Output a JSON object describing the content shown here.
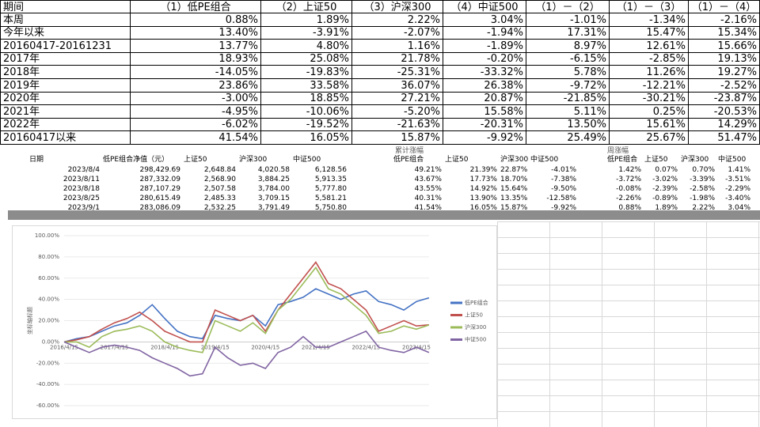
{
  "table1": {
    "header": [
      "期间",
      "（1）低PE组合",
      "（2）上证50",
      "（3）沪深300",
      "（4）中证500",
      "（1）－（2）",
      "（1）－（3）",
      "（1）－（4）"
    ],
    "rows": [
      [
        "本周",
        "0.88%",
        "1.89%",
        "2.22%",
        "3.04%",
        "-1.01%",
        "-1.34%",
        "-2.16%"
      ],
      [
        "今年以来",
        "13.40%",
        "-3.91%",
        "-2.07%",
        "-1.94%",
        "17.31%",
        "15.47%",
        "15.34%"
      ],
      [
        "20160417-20161231",
        "13.77%",
        "4.80%",
        "1.16%",
        "-1.89%",
        "8.97%",
        "12.61%",
        "15.66%"
      ],
      [
        "2017年",
        "18.93%",
        "25.08%",
        "21.78%",
        "-0.20%",
        "-6.15%",
        "-2.85%",
        "19.13%"
      ],
      [
        "2018年",
        "-14.05%",
        "-19.83%",
        "-25.31%",
        "-33.32%",
        "5.78%",
        "11.26%",
        "19.27%"
      ],
      [
        "2019年",
        "23.86%",
        "33.58%",
        "36.07%",
        "26.38%",
        "-9.72%",
        "-12.21%",
        "-2.52%"
      ],
      [
        "2020年",
        "-3.00%",
        "18.85%",
        "27.21%",
        "20.87%",
        "-21.85%",
        "-30.21%",
        "-23.87%"
      ],
      [
        "2021年",
        "-4.95%",
        "-10.06%",
        "-5.20%",
        "15.58%",
        "5.11%",
        "0.25%",
        "-20.53%"
      ],
      [
        "2022年",
        "-6.02%",
        "-19.52%",
        "-21.63%",
        "-20.31%",
        "13.50%",
        "15.61%",
        "14.29%"
      ],
      [
        "20160417以来",
        "41.54%",
        "16.05%",
        "15.87%",
        "-9.92%",
        "25.49%",
        "25.67%",
        "51.47%"
      ]
    ]
  },
  "table2": {
    "groups": [
      "累计涨幅",
      "周涨幅"
    ],
    "header": [
      "日期",
      "低PE组合净值（元）",
      "上证50",
      "沪深300",
      "中证500",
      "低PE组合",
      "上证50",
      "沪深300",
      "中证500",
      "低PE组合",
      "上证50",
      "沪深300",
      "中证500"
    ],
    "rows": [
      [
        "2023/8/4",
        "298,429.69",
        "2,648.84",
        "4,020.58",
        "6,128.56",
        "49.21%",
        "21.39%",
        "22.87%",
        "-4.01%",
        "1.42%",
        "0.07%",
        "0.70%",
        "1.41%"
      ],
      [
        "2023/8/11",
        "287,332.09",
        "2,568.90",
        "3,884.25",
        "5,913.35",
        "43.67%",
        "17.73%",
        "18.70%",
        "-7.38%",
        "-3.72%",
        "-3.02%",
        "-3.39%",
        "-3.51%"
      ],
      [
        "2023/8/18",
        "287,107.29",
        "2,507.58",
        "3,784.00",
        "5,777.80",
        "43.55%",
        "14.92%",
        "15.64%",
        "-9.50%",
        "-0.08%",
        "-2.39%",
        "-2.58%",
        "-2.29%"
      ],
      [
        "2023/8/25",
        "280,615.49",
        "2,485.33",
        "3,709.15",
        "5,581.21",
        "40.31%",
        "13.90%",
        "13.35%",
        "-12.58%",
        "-2.26%",
        "-0.89%",
        "-1.98%",
        "-3.40%"
      ],
      [
        "2023/9/1",
        "283,086.09",
        "2,532.25",
        "3,791.49",
        "5,750.80",
        "41.54%",
        "16.05%",
        "15.87%",
        "-9.92%",
        "0.88%",
        "1.89%",
        "2.22%",
        "3.04%"
      ]
    ]
  },
  "chart_data": {
    "type": "line",
    "y_label": "坐标轴标题",
    "categories": [
      "2016/4/15",
      null,
      null,
      null,
      "2017/4/15",
      null,
      null,
      null,
      "2018/4/15",
      null,
      null,
      null,
      "2019/4/15",
      null,
      null,
      null,
      "2020/4/15",
      null,
      null,
      null,
      "2021/4/15",
      null,
      null,
      null,
      "2022/4/15",
      null,
      null,
      null,
      "2023/4/15",
      null
    ],
    "series": [
      {
        "name": "低PE组合",
        "color": "#4472c4",
        "values": [
          0,
          3,
          5,
          10,
          15,
          18,
          25,
          35,
          22,
          10,
          5,
          3,
          25,
          22,
          20,
          25,
          15,
          35,
          38,
          42,
          50,
          45,
          40,
          45,
          48,
          38,
          35,
          30,
          38,
          41.54
        ]
      },
      {
        "name": "上证50",
        "color": "#c0504d",
        "values": [
          0,
          2,
          5,
          12,
          18,
          22,
          28,
          20,
          10,
          5,
          0,
          0,
          30,
          25,
          20,
          25,
          10,
          30,
          45,
          60,
          75,
          55,
          50,
          40,
          30,
          10,
          15,
          20,
          15,
          16.05
        ]
      },
      {
        "name": "沪深300",
        "color": "#9bbb59",
        "values": [
          0,
          0,
          -5,
          5,
          10,
          12,
          15,
          10,
          0,
          -5,
          -8,
          -10,
          20,
          15,
          10,
          18,
          8,
          30,
          40,
          55,
          70,
          50,
          45,
          35,
          25,
          8,
          10,
          15,
          12,
          15.87
        ]
      },
      {
        "name": "中证500",
        "color": "#8064a2",
        "values": [
          0,
          -5,
          -10,
          -5,
          -3,
          -5,
          -8,
          -15,
          -20,
          -25,
          -32,
          -30,
          -5,
          -15,
          -22,
          -20,
          -25,
          -10,
          -5,
          5,
          -5,
          -5,
          0,
          5,
          10,
          -5,
          -8,
          -10,
          -5,
          -9.92
        ]
      }
    ],
    "ylim": [
      -60,
      100
    ],
    "yticks": [
      {
        "value": -60,
        "label": "-60.00%"
      },
      {
        "value": -40,
        "label": "-40.00%"
      },
      {
        "value": -20,
        "label": "-20.00%"
      },
      {
        "value": 0,
        "label": "0.00%"
      },
      {
        "value": 20,
        "label": "20.00%"
      },
      {
        "value": 40,
        "label": "40.00%"
      },
      {
        "value": 60,
        "label": "60.00%"
      },
      {
        "value": 80,
        "label": "80.00%"
      },
      {
        "value": 100,
        "label": "100.00%"
      }
    ],
    "grid": true
  }
}
